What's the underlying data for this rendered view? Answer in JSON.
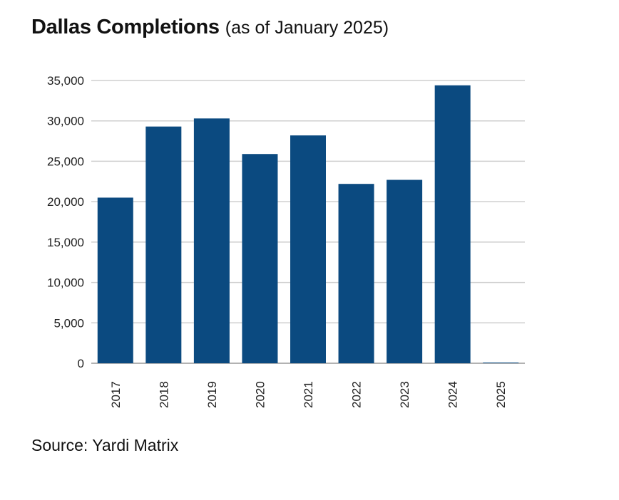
{
  "title": {
    "main": "Dallas Completions",
    "sub": "(as of January 2025)"
  },
  "source": "Source: Yardi Matrix",
  "colors": {
    "bar": "#0b4a80",
    "grid": "#cfcfcf",
    "axis": "#999999"
  },
  "chart_data": {
    "type": "bar",
    "title": "Dallas Completions",
    "subtitle": "(as of January 2025)",
    "categories": [
      "2017",
      "2018",
      "2019",
      "2020",
      "2021",
      "2022",
      "2023",
      "2024",
      "2025"
    ],
    "values": [
      20500,
      29300,
      30300,
      25900,
      28200,
      22200,
      22700,
      34400,
      0
    ],
    "yticks": [
      0,
      5000,
      10000,
      15000,
      20000,
      25000,
      30000,
      35000
    ],
    "ytick_labels": [
      "0",
      "5,000",
      "10,000",
      "15,000",
      "20,000",
      "25,000",
      "30,000",
      "35,000"
    ],
    "ylim": [
      0,
      35000
    ],
    "grid": true,
    "legend": "none",
    "xlabel": "",
    "ylabel": ""
  }
}
